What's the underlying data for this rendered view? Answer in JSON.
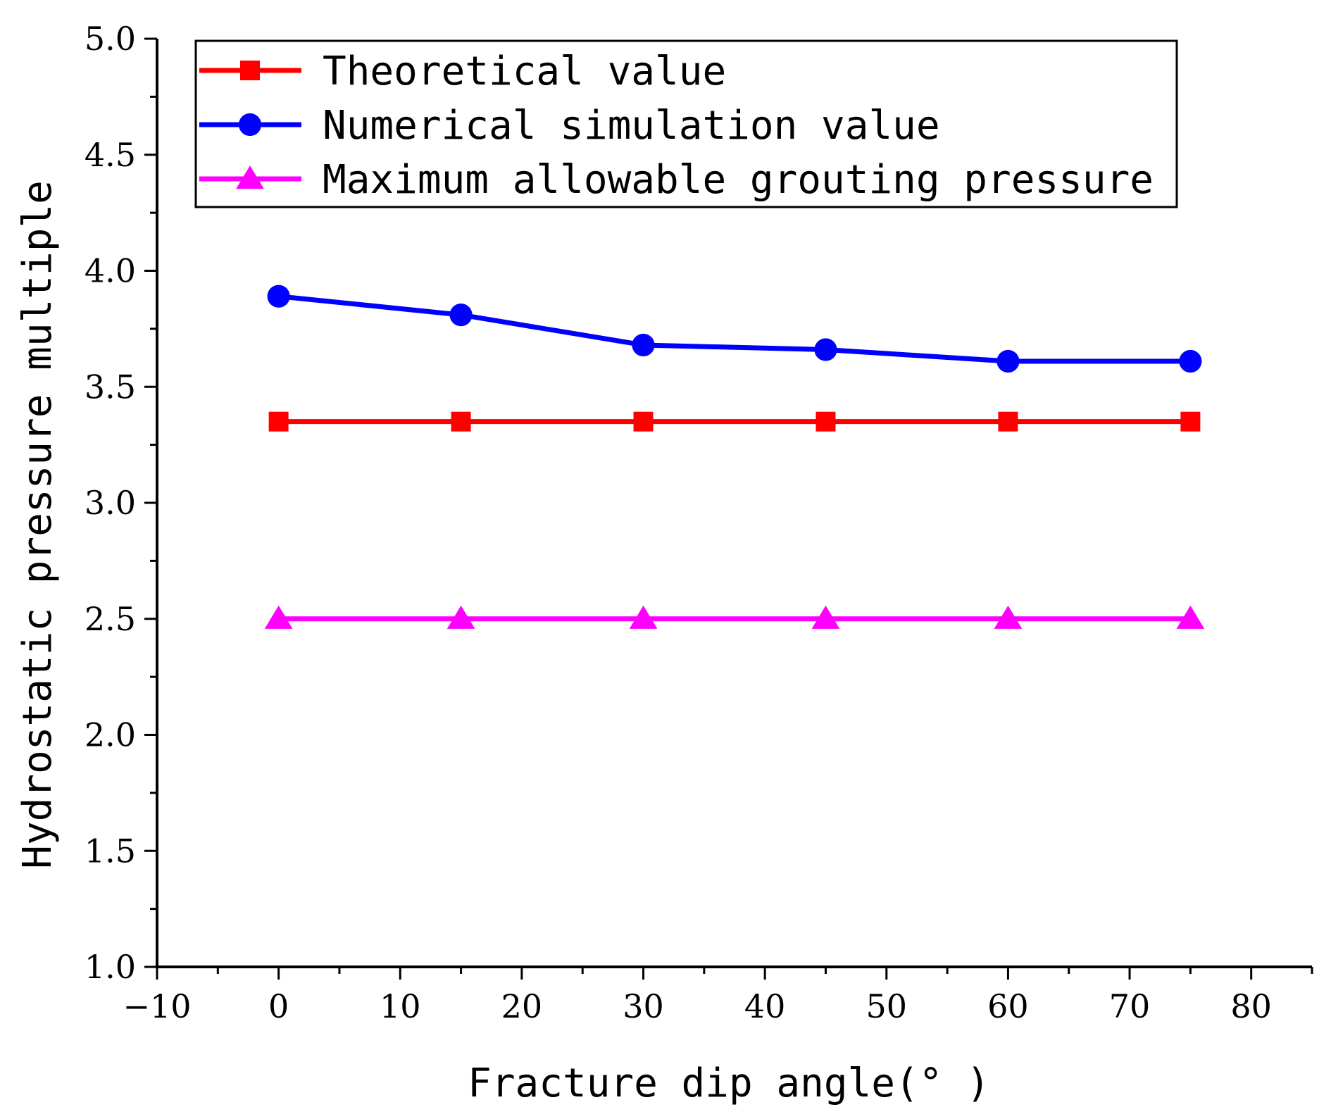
{
  "chart_data": {
    "type": "line",
    "title": "",
    "xlabel": "Fracture dip angle(°  )",
    "ylabel": "Hydrostatic pressure multiple",
    "xlim": [
      -10,
      85
    ],
    "ylim": [
      1.0,
      5.0
    ],
    "x_ticks": [
      -10,
      0,
      10,
      20,
      30,
      40,
      50,
      60,
      70,
      80
    ],
    "x_tick_labels": [
      "−10",
      "0",
      "10",
      "20",
      "30",
      "40",
      "50",
      "60",
      "70",
      "80"
    ],
    "y_ticks": [
      1.0,
      1.5,
      2.0,
      2.5,
      3.0,
      3.5,
      4.0,
      4.5,
      5.0
    ],
    "y_tick_labels": [
      "1.0",
      "1.5",
      "2.0",
      "2.5",
      "3.0",
      "3.5",
      "4.0",
      "4.5",
      "5.0"
    ],
    "grid": false,
    "legend_position": "top",
    "x": [
      0,
      15,
      30,
      45,
      60,
      75
    ],
    "series": [
      {
        "name": "Theoretical value",
        "marker": "square",
        "color": "#ff0000",
        "values": [
          3.35,
          3.35,
          3.35,
          3.35,
          3.35,
          3.35
        ]
      },
      {
        "name": "Numerical simulation value",
        "marker": "circle",
        "color": "#0000ff",
        "values": [
          3.89,
          3.81,
          3.68,
          3.66,
          3.61,
          3.61
        ]
      },
      {
        "name": "Maximum allowable grouting pressure",
        "marker": "triangle",
        "color": "#ff00ff",
        "values": [
          2.5,
          2.5,
          2.5,
          2.5,
          2.5,
          2.5
        ]
      }
    ]
  }
}
